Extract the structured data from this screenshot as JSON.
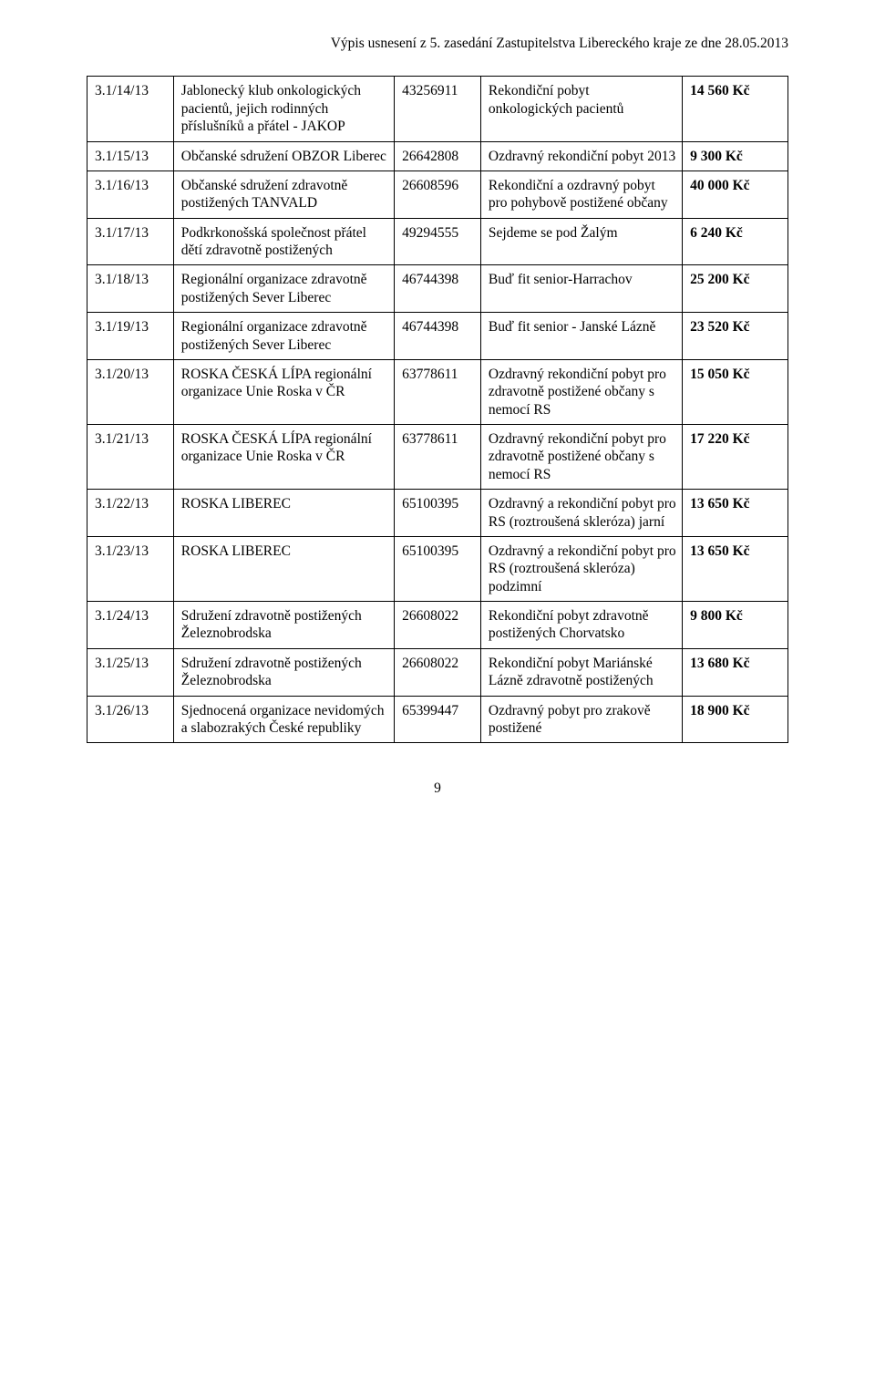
{
  "header": {
    "text": "Výpis usnesení z 5. zasedání Zastupitelstva Libereckého kraje ze dne 28.05.2013"
  },
  "page_number": "9",
  "table": {
    "columns": [
      "id",
      "name",
      "regnum",
      "desc",
      "amount"
    ],
    "rows": [
      {
        "id": "3.1/14/13",
        "name": "Jablonecký klub onkologických pacientů, jejich rodinných příslušníků a přátel - JAKOP",
        "regnum": "43256911",
        "desc": "Rekondiční pobyt onkologických pacientů",
        "amount": "14 560 Kč"
      },
      {
        "id": "3.1/15/13",
        "name": "Občanské sdružení OBZOR Liberec",
        "regnum": "26642808",
        "desc": "Ozdravný rekondiční pobyt 2013",
        "amount": "9 300 Kč"
      },
      {
        "id": "3.1/16/13",
        "name": "Občanské sdružení zdravotně postižených TANVALD",
        "regnum": "26608596",
        "desc": "Rekondiční a ozdravný pobyt pro pohybově postižené občany",
        "amount": "40 000 Kč"
      },
      {
        "id": "3.1/17/13",
        "name": "Podkrkonošská společnost přátel dětí zdravotně postižených",
        "regnum": "49294555",
        "desc": "Sejdeme se pod Žalým",
        "amount": "6 240 Kč"
      },
      {
        "id": "3.1/18/13",
        "name": "Regionální organizace zdravotně postižených Sever Liberec",
        "regnum": "46744398",
        "desc": "Buď fit senior-Harrachov",
        "amount": "25 200 Kč"
      },
      {
        "id": "3.1/19/13",
        "name": "Regionální organizace zdravotně postižených Sever Liberec",
        "regnum": "46744398",
        "desc": "Buď fit senior - Janské Lázně",
        "amount": "23 520 Kč"
      },
      {
        "id": "3.1/20/13",
        "name": "ROSKA ČESKÁ LÍPA regionální organizace Unie Roska v ČR",
        "regnum": "63778611",
        "desc": "Ozdravný rekondiční pobyt pro zdravotně postižené občany s nemocí RS",
        "amount": "15 050 Kč"
      },
      {
        "id": "3.1/21/13",
        "name": "ROSKA ČESKÁ LÍPA regionální organizace Unie Roska v ČR",
        "regnum": "63778611",
        "desc": "Ozdravný rekondiční pobyt pro zdravotně postižené občany s nemocí RS",
        "amount": "17 220 Kč"
      },
      {
        "id": "3.1/22/13",
        "name": "ROSKA LIBEREC",
        "regnum": "65100395",
        "desc": "Ozdravný a rekondiční pobyt pro RS (roztroušená skleróza) jarní",
        "amount": "13 650 Kč"
      },
      {
        "id": "3.1/23/13",
        "name": "ROSKA LIBEREC",
        "regnum": "65100395",
        "desc": "Ozdravný a rekondiční pobyt pro RS (roztroušená skleróza) podzimní",
        "amount": "13 650 Kč"
      },
      {
        "id": "3.1/24/13",
        "name": "Sdružení zdravotně postižených Železnobrodska",
        "regnum": "26608022",
        "desc": "Rekondiční pobyt zdravotně postižených Chorvatsko",
        "amount": "9 800 Kč"
      },
      {
        "id": "3.1/25/13",
        "name": "Sdružení zdravotně postižených Železnobrodska",
        "regnum": "26608022",
        "desc": "Rekondiční pobyt Mariánské Lázně zdravotně postižených",
        "amount": "13 680 Kč"
      },
      {
        "id": "3.1/26/13",
        "name": "Sjednocená organizace nevidomých a slabozrakých České republiky",
        "regnum": "65399447",
        "desc": "Ozdravný pobyt pro zrakově postižené",
        "amount": "18 900 Kč"
      }
    ]
  }
}
